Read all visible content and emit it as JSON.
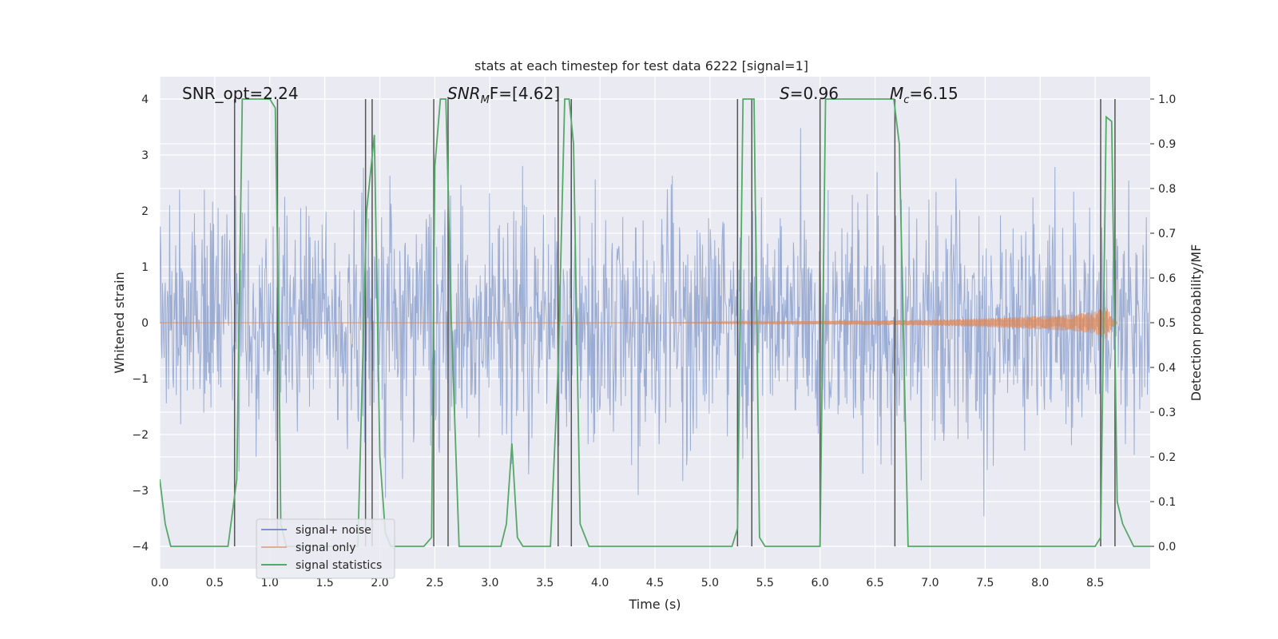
{
  "chart_data": {
    "type": "line",
    "title": "stats at each timestep for test data 6222 [signal=1]",
    "xlabel": "Time (s)",
    "ylabel": "Whitened strain",
    "y2label": "Detection probability/MF",
    "xlim": [
      0.0,
      9.0
    ],
    "ylim": [
      -4.4,
      4.4
    ],
    "y2lim": [
      -0.05,
      1.05
    ],
    "xticks": [
      "0.0",
      "0.5",
      "1.0",
      "1.5",
      "2.0",
      "2.5",
      "3.0",
      "3.5",
      "4.0",
      "4.5",
      "5.0",
      "5.5",
      "6.0",
      "6.5",
      "7.0",
      "7.5",
      "8.0",
      "8.5"
    ],
    "yticks": [
      "−4",
      "−3",
      "−2",
      "−1",
      "0",
      "1",
      "2",
      "3",
      "4"
    ],
    "y2ticks": [
      "0.0",
      "0.1",
      "0.2",
      "0.3",
      "0.4",
      "0.5",
      "0.6",
      "0.7",
      "0.8",
      "0.9",
      "1.0"
    ],
    "grid": true,
    "legend_position": "lower-left",
    "legend": [
      "signal+ noise",
      "signal only",
      "signal statistics"
    ],
    "colors": {
      "noise": "#7b93c7",
      "signal": "#dd8452",
      "stats": "#55a868",
      "vlines": "#555555",
      "background": "#eaeaf2"
    },
    "annotations": {
      "snr_opt": "SNR_opt=2.24",
      "snr_mf_base": "SNR",
      "snr_mf_sub": "M",
      "snr_mf_rest": "F=[4.62]",
      "s_base": "S",
      "s_rest": "=0.96",
      "mc_base": "M",
      "mc_sub": "c",
      "mc_rest": "=6.15"
    },
    "series": [
      {
        "name": "signal statistics",
        "axis": "right",
        "x": [
          0.0,
          0.05,
          0.1,
          0.2,
          0.35,
          0.5,
          0.62,
          0.7,
          0.75,
          0.8,
          1.0,
          1.05,
          1.08,
          1.1,
          1.15,
          1.3,
          1.6,
          1.8,
          1.88,
          1.95,
          2.0,
          2.05,
          2.1,
          2.2,
          2.4,
          2.47,
          2.5,
          2.55,
          2.6,
          2.65,
          2.72,
          2.8,
          3.1,
          3.15,
          3.2,
          3.25,
          3.3,
          3.4,
          3.55,
          3.62,
          3.68,
          3.72,
          3.76,
          3.82,
          3.9,
          4.2,
          5.0,
          5.2,
          5.25,
          5.3,
          5.4,
          5.45,
          5.5,
          5.8,
          6.0,
          6.05,
          6.1,
          6.5,
          6.67,
          6.72,
          6.8,
          7.0,
          8.0,
          8.5,
          8.55,
          8.6,
          8.65,
          8.7,
          8.75,
          8.85,
          9.0
        ],
        "y": [
          0.15,
          0.05,
          0.0,
          0.0,
          0.0,
          0.0,
          0.0,
          0.15,
          1.0,
          1.0,
          1.0,
          0.98,
          0.5,
          0.05,
          0.0,
          0.0,
          0.0,
          0.0,
          0.75,
          0.92,
          0.2,
          0.03,
          0.0,
          0.0,
          0.0,
          0.02,
          0.85,
          1.0,
          1.0,
          0.5,
          0.0,
          0.0,
          0.0,
          0.05,
          0.23,
          0.02,
          0.0,
          0.0,
          0.0,
          0.4,
          1.0,
          1.0,
          0.9,
          0.05,
          0.0,
          0.0,
          0.0,
          0.0,
          0.04,
          1.0,
          1.0,
          0.02,
          0.0,
          0.0,
          0.0,
          1.0,
          1.0,
          1.0,
          1.0,
          0.9,
          0.0,
          0.0,
          0.0,
          0.0,
          0.02,
          0.96,
          0.95,
          0.1,
          0.05,
          0.0,
          0.0
        ]
      },
      {
        "name": "signal only",
        "axis": "left",
        "x": [
          0.0,
          4.5,
          5.0,
          5.5,
          6.0,
          6.5,
          7.0,
          7.5,
          8.0,
          8.3,
          8.5,
          8.6,
          8.65,
          8.7
        ],
        "amplitude": [
          0.0,
          0.0,
          0.01,
          0.02,
          0.03,
          0.04,
          0.05,
          0.08,
          0.12,
          0.15,
          0.2,
          0.3,
          0.1,
          0.0
        ]
      },
      {
        "name": "signal+ noise",
        "axis": "left",
        "description_values": "white noise, std ~1.0, peaks up to ~3.9"
      }
    ],
    "vlines_x": [
      0.68,
      1.07,
      1.87,
      1.93,
      2.49,
      2.62,
      3.62,
      3.74,
      5.25,
      5.38,
      6.0,
      6.68,
      8.55,
      8.68
    ]
  }
}
